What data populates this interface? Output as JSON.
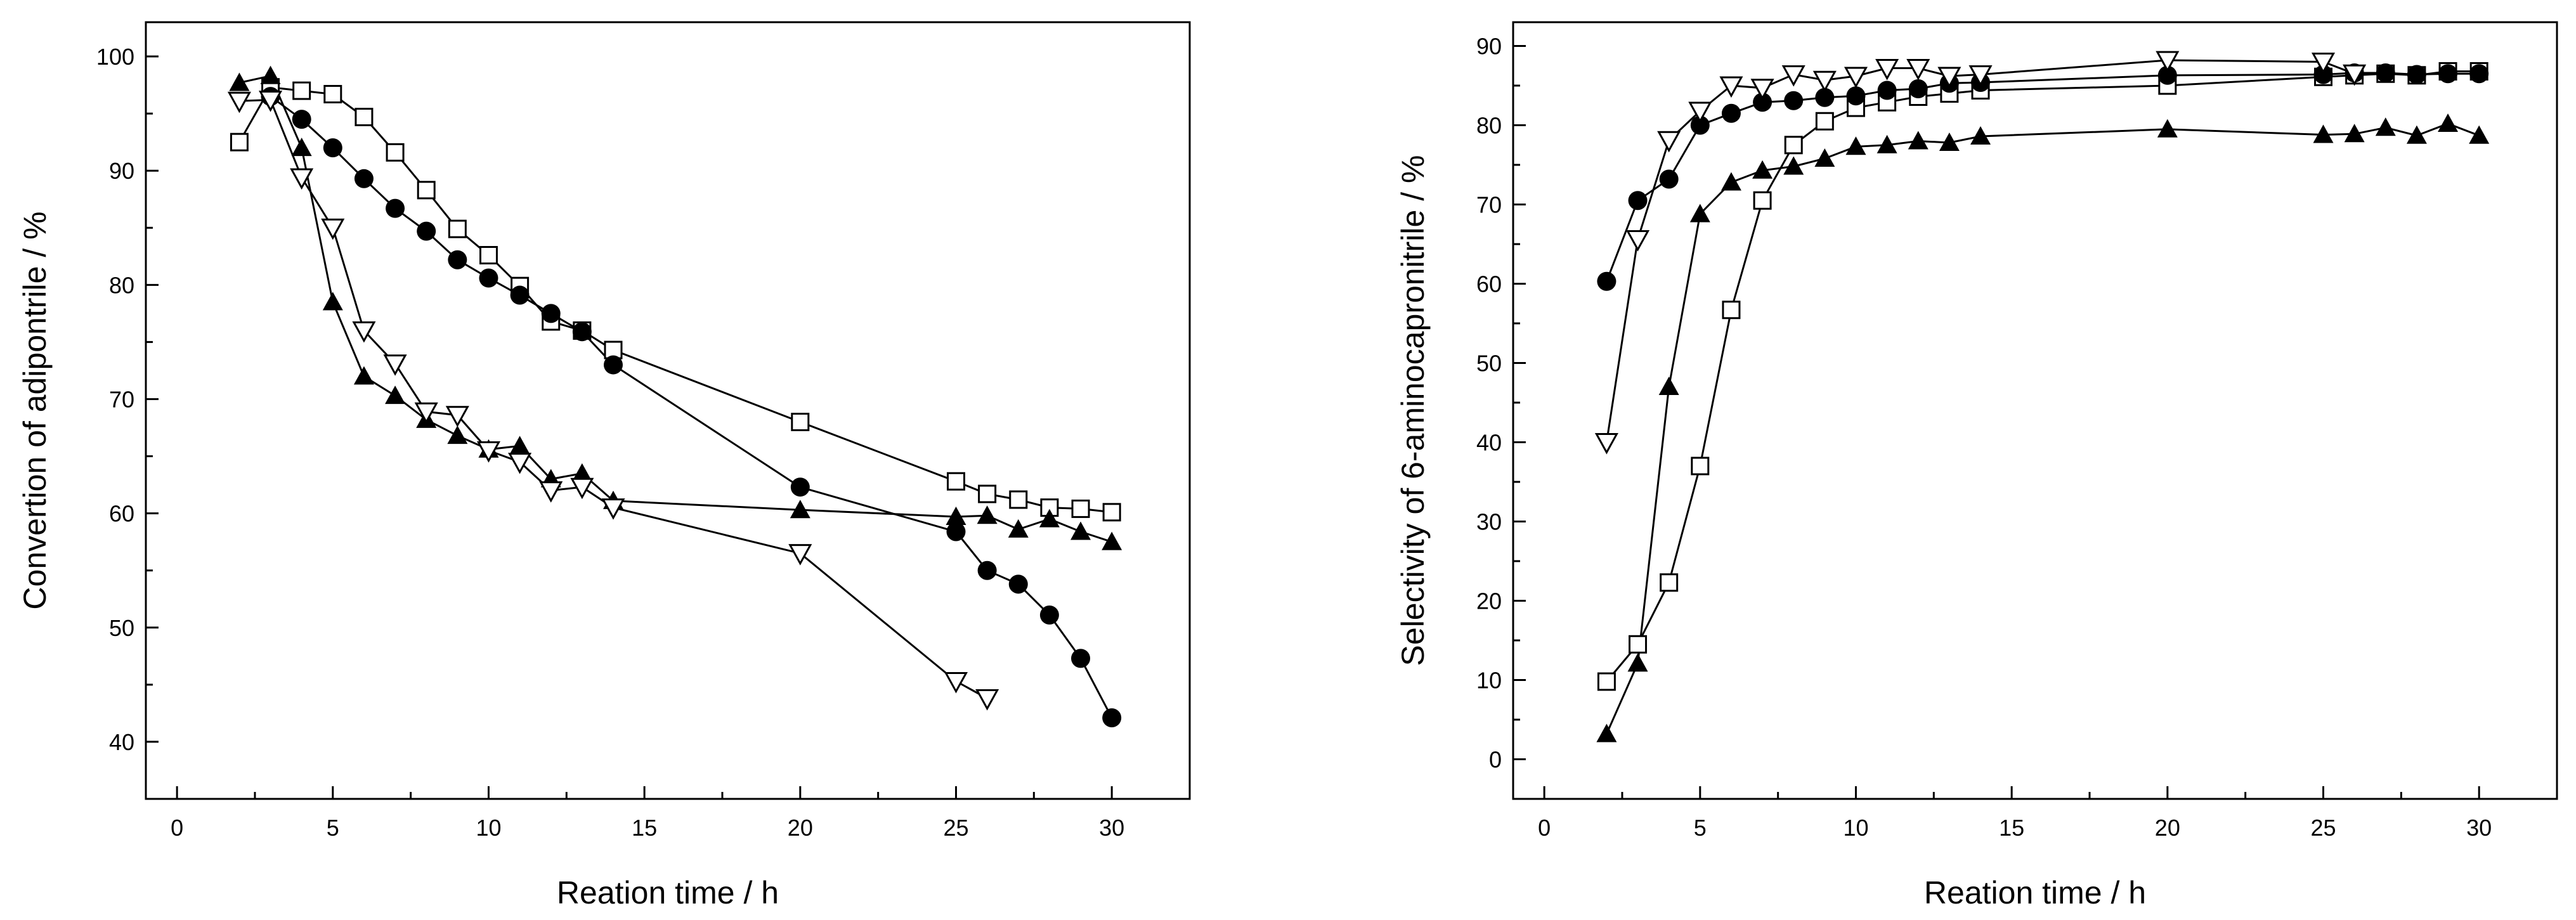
{
  "chart_data": [
    {
      "type": "line",
      "title": "",
      "xlabel": "Reation time / h",
      "ylabel": "Convertion of adipontrile / %",
      "xlim": [
        -1,
        32.5
      ],
      "ylim": [
        35,
        103
      ],
      "xticks": [
        0,
        5,
        10,
        15,
        20,
        25,
        30
      ],
      "yticks": [
        40,
        50,
        60,
        70,
        80,
        90,
        100
      ],
      "grid": false,
      "legend": "none",
      "series": [
        {
          "name": "open squares",
          "marker": "open-square",
          "x": [
            2,
            3,
            4,
            5,
            6,
            7,
            8,
            9,
            10,
            11,
            12,
            13,
            14,
            20,
            25,
            26,
            27,
            28,
            29,
            30
          ],
          "y": [
            92.5,
            97.3,
            97.0,
            96.7,
            94.7,
            91.6,
            88.3,
            84.9,
            82.6,
            79.9,
            76.8,
            76.0,
            74.3,
            68.0,
            62.8,
            61.7,
            61.2,
            60.5,
            60.4,
            60.1
          ]
        },
        {
          "name": "filled circles",
          "marker": "filled-circle",
          "x": [
            3,
            4,
            5,
            6,
            7,
            8,
            9,
            10,
            11,
            12,
            13,
            14,
            20,
            25,
            26,
            27,
            28,
            29,
            30
          ],
          "y": [
            96.5,
            94.5,
            92.0,
            89.3,
            86.7,
            84.7,
            82.2,
            80.6,
            79.1,
            77.5,
            75.9,
            73.0,
            62.3,
            58.4,
            55.0,
            53.8,
            51.1,
            47.3,
            42.1
          ]
        },
        {
          "name": "filled triangles",
          "marker": "filled-triangle",
          "x": [
            2,
            3,
            4,
            5,
            6,
            7,
            8,
            9,
            10,
            11,
            12,
            13,
            14,
            20,
            25,
            26,
            27,
            28,
            29,
            30
          ],
          "y": [
            97.7,
            98.3,
            92.0,
            78.5,
            72.0,
            70.3,
            68.2,
            66.8,
            65.6,
            65.9,
            63.0,
            63.5,
            61.1,
            60.3,
            59.7,
            59.8,
            58.6,
            59.5,
            58.4,
            57.5
          ]
        },
        {
          "name": "open inverted triangles",
          "marker": "open-triangle-down",
          "x": [
            2,
            3,
            4,
            5,
            6,
            7,
            8,
            9,
            10,
            11,
            12,
            13,
            14,
            20,
            25,
            26
          ],
          "y": [
            96.1,
            96.2,
            89.4,
            85.0,
            76.0,
            73.1,
            68.9,
            68.6,
            65.5,
            64.5,
            62.0,
            62.3,
            60.5,
            56.5,
            45.3,
            43.8
          ]
        }
      ]
    },
    {
      "type": "line",
      "title": "",
      "xlabel": "Reation time / h",
      "ylabel": "Selectivity of 6-aminocapronitrile / %",
      "xlim": [
        -1,
        32.5
      ],
      "ylim": [
        -5,
        93
      ],
      "xticks": [
        0,
        5,
        10,
        15,
        20,
        25,
        30
      ],
      "yticks": [
        0,
        10,
        20,
        30,
        40,
        50,
        60,
        70,
        80,
        90
      ],
      "grid": false,
      "legend": "none",
      "series": [
        {
          "name": "open squares",
          "marker": "open-square",
          "x": [
            2,
            3,
            4,
            5,
            6,
            7,
            8,
            9,
            10,
            11,
            12,
            13,
            14,
            20,
            25,
            26,
            27,
            28,
            29,
            30
          ],
          "y": [
            9.8,
            14.5,
            22.3,
            37.0,
            56.7,
            70.5,
            77.5,
            80.5,
            82.2,
            82.9,
            83.6,
            84.0,
            84.4,
            85.0,
            86.1,
            86.3,
            86.5,
            86.3,
            86.8,
            86.8
          ]
        },
        {
          "name": "filled circles",
          "marker": "filled-circle",
          "x": [
            2,
            3,
            4,
            5,
            6,
            7,
            8,
            9,
            10,
            11,
            12,
            13,
            14,
            20,
            25,
            26,
            27,
            28,
            29,
            30
          ],
          "y": [
            60.3,
            70.5,
            73.2,
            80.0,
            81.5,
            82.9,
            83.1,
            83.5,
            83.7,
            84.4,
            84.6,
            85.3,
            85.4,
            86.3,
            86.4,
            86.6,
            86.6,
            86.4,
            86.5,
            86.5
          ]
        },
        {
          "name": "filled triangles",
          "marker": "filled-triangle",
          "x": [
            2,
            3,
            4,
            5,
            6,
            7,
            8,
            9,
            10,
            11,
            12,
            13,
            14,
            20,
            25,
            26,
            27,
            28,
            29,
            30
          ],
          "y": [
            3.2,
            12.1,
            47.0,
            68.8,
            72.8,
            74.3,
            74.8,
            75.8,
            77.3,
            77.5,
            78.0,
            77.8,
            78.6,
            79.5,
            78.8,
            78.9,
            79.7,
            78.7,
            80.2,
            78.7
          ]
        },
        {
          "name": "open inverted triangles",
          "marker": "open-triangle-down",
          "x": [
            2,
            3,
            4,
            5,
            6,
            7,
            8,
            9,
            10,
            11,
            12,
            13,
            14,
            20,
            25,
            26
          ],
          "y": [
            40.0,
            65.6,
            78.1,
            81.8,
            85.0,
            84.7,
            86.4,
            85.7,
            86.2,
            87.2,
            87.2,
            86.2,
            86.4,
            88.2,
            88.0,
            86.5
          ]
        }
      ]
    }
  ]
}
